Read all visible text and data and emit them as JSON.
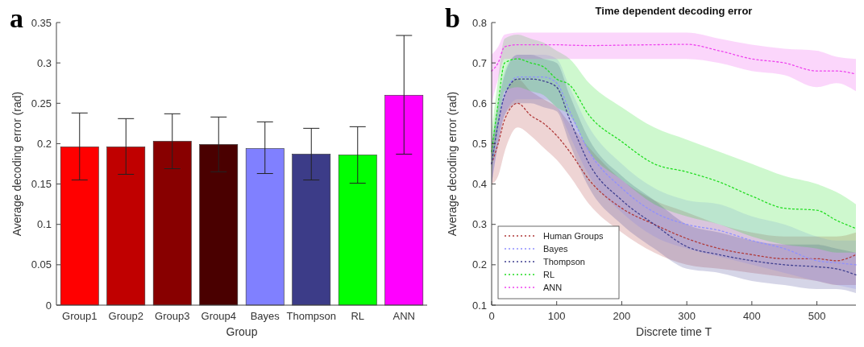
{
  "chart_data": [
    {
      "type": "bar",
      "annotations": [
        "a"
      ],
      "xlabel": "Group",
      "ylabel": "Average decoding error (rad)",
      "categories": [
        "Group1",
        "Group2",
        "Group3",
        "Group4",
        "Bayes",
        "Thompson",
        "RL",
        "ANN"
      ],
      "values": [
        0.196,
        0.196,
        0.203,
        0.199,
        0.194,
        0.187,
        0.186,
        0.26
      ],
      "colors": [
        "#ff0000",
        "#c00000",
        "#880000",
        "#4a0000",
        "#8080ff",
        "#3c3c88",
        "#00ff00",
        "#ff00ff"
      ],
      "errors": [
        [
          0.155,
          0.238
        ],
        [
          0.162,
          0.231
        ],
        [
          0.169,
          0.237
        ],
        [
          0.165,
          0.233
        ],
        [
          0.163,
          0.227
        ],
        [
          0.155,
          0.219
        ],
        [
          0.151,
          0.221
        ],
        [
          0.187,
          0.334
        ]
      ],
      "ylim": [
        0,
        0.35
      ],
      "yticks": [
        0,
        0.05,
        0.1,
        0.15,
        0.2,
        0.25,
        0.3,
        0.35
      ]
    },
    {
      "type": "line",
      "annotations": [
        "b"
      ],
      "title": "Time dependent decoding error",
      "xlabel": "Discrete time T",
      "ylabel": "Average decoding error (rad)",
      "legend": "bottom left",
      "line_style": "dotted",
      "x": [
        0,
        10,
        20,
        40,
        60,
        80,
        100,
        120,
        150,
        200,
        250,
        300,
        350,
        400,
        450,
        500,
        530,
        560
      ],
      "series": [
        {
          "name": "Human Groups",
          "color": "#b03a3a",
          "values": [
            0.45,
            0.5,
            0.56,
            0.6,
            0.57,
            0.55,
            0.52,
            0.48,
            0.41,
            0.34,
            0.3,
            0.265,
            0.24,
            0.225,
            0.215,
            0.215,
            0.21,
            0.225
          ],
          "lower": [
            0.4,
            0.42,
            0.48,
            0.54,
            0.52,
            0.49,
            0.46,
            0.42,
            0.35,
            0.28,
            0.23,
            0.2,
            0.19,
            0.18,
            0.17,
            0.16,
            0.15,
            0.15
          ],
          "upper": [
            0.5,
            0.56,
            0.62,
            0.66,
            0.63,
            0.61,
            0.59,
            0.55,
            0.49,
            0.41,
            0.36,
            0.33,
            0.3,
            0.28,
            0.27,
            0.27,
            0.27,
            0.28
          ]
        },
        {
          "name": "Bayes",
          "color": "#9090ff",
          "values": [
            0.45,
            0.55,
            0.62,
            0.665,
            0.665,
            0.665,
            0.65,
            0.58,
            0.48,
            0.39,
            0.33,
            0.3,
            0.285,
            0.26,
            0.24,
            0.21,
            0.205,
            0.2
          ],
          "lower": [
            0.4,
            0.5,
            0.57,
            0.61,
            0.61,
            0.61,
            0.59,
            0.52,
            0.42,
            0.33,
            0.27,
            0.24,
            0.22,
            0.2,
            0.18,
            0.16,
            0.15,
            0.14
          ],
          "upper": [
            0.5,
            0.6,
            0.68,
            0.72,
            0.72,
            0.72,
            0.71,
            0.64,
            0.54,
            0.45,
            0.39,
            0.36,
            0.35,
            0.32,
            0.3,
            0.27,
            0.26,
            0.26
          ]
        },
        {
          "name": "Thompson",
          "color": "#404090",
          "values": [
            0.45,
            0.55,
            0.62,
            0.66,
            0.66,
            0.655,
            0.64,
            0.56,
            0.45,
            0.36,
            0.3,
            0.245,
            0.225,
            0.21,
            0.2,
            0.195,
            0.19,
            0.175
          ],
          "lower": [
            0.4,
            0.5,
            0.57,
            0.6,
            0.6,
            0.59,
            0.58,
            0.5,
            0.39,
            0.3,
            0.24,
            0.19,
            0.18,
            0.16,
            0.15,
            0.14,
            0.14,
            0.13
          ],
          "upper": [
            0.5,
            0.6,
            0.67,
            0.72,
            0.72,
            0.71,
            0.7,
            0.62,
            0.51,
            0.42,
            0.36,
            0.3,
            0.28,
            0.26,
            0.25,
            0.25,
            0.24,
            0.23
          ]
        },
        {
          "name": "RL",
          "color": "#22dd22",
          "values": [
            0.48,
            0.6,
            0.7,
            0.71,
            0.7,
            0.69,
            0.66,
            0.645,
            0.57,
            0.505,
            0.45,
            0.43,
            0.405,
            0.37,
            0.34,
            0.335,
            0.31,
            0.29
          ],
          "lower": [
            0.43,
            0.54,
            0.63,
            0.64,
            0.63,
            0.62,
            0.59,
            0.57,
            0.48,
            0.41,
            0.35,
            0.32,
            0.3,
            0.27,
            0.25,
            0.24,
            0.23,
            0.23
          ],
          "upper": [
            0.53,
            0.66,
            0.76,
            0.77,
            0.76,
            0.75,
            0.73,
            0.71,
            0.65,
            0.59,
            0.54,
            0.51,
            0.48,
            0.45,
            0.42,
            0.4,
            0.38,
            0.35
          ]
        },
        {
          "name": "ANN",
          "color": "#ee44ee",
          "values": [
            0.68,
            0.7,
            0.74,
            0.745,
            0.745,
            0.745,
            0.745,
            0.744,
            0.743,
            0.744,
            0.745,
            0.746,
            0.73,
            0.71,
            0.7,
            0.68,
            0.68,
            0.672
          ],
          "lower": [
            0.6,
            0.66,
            0.71,
            0.71,
            0.71,
            0.71,
            0.71,
            0.71,
            0.71,
            0.71,
            0.71,
            0.71,
            0.7,
            0.68,
            0.67,
            0.64,
            0.65,
            0.63
          ],
          "upper": [
            0.72,
            0.74,
            0.77,
            0.775,
            0.775,
            0.775,
            0.775,
            0.775,
            0.775,
            0.775,
            0.775,
            0.775,
            0.76,
            0.745,
            0.735,
            0.73,
            0.715,
            0.71
          ]
        }
      ],
      "xlim": [
        0,
        560
      ],
      "xticks": [
        0,
        100,
        200,
        300,
        400,
        500
      ],
      "ylim": [
        0.1,
        0.8
      ],
      "yticks": [
        0.1,
        0.2,
        0.3,
        0.4,
        0.5,
        0.6,
        0.7,
        0.8
      ]
    }
  ]
}
